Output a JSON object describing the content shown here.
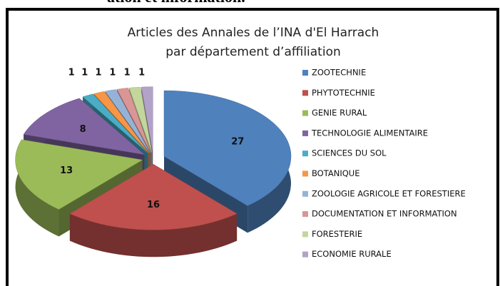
{
  "caption": "ation et information.",
  "chart_data": {
    "type": "pie3d",
    "title": [
      "Articles des Annales de l’INA d'El Harrach",
      "par département d’affiliation"
    ],
    "categories": [
      "ZOOTECHNIE",
      "PHYTOTECHNIE",
      "GENIE RURAL",
      "TECHNOLOGIE ALIMENTAIRE",
      "SCIENCES DU SOL",
      "BOTANIQUE",
      "ZOOLOGIE AGRICOLE ET FORESTIERE",
      "DOCUMENTATION ET INFORMATION",
      "FORESTERIE",
      "ECONOMIE RURALE"
    ],
    "values": [
      27,
      16,
      13,
      8,
      1,
      1,
      1,
      1,
      1,
      1
    ],
    "colors": [
      "#4f81bd",
      "#c0504d",
      "#9bbb59",
      "#8064a2",
      "#4bacc6",
      "#f79646",
      "#95b3d7",
      "#d99694",
      "#c3d69b",
      "#b2a2c7"
    ],
    "legend": "right"
  }
}
